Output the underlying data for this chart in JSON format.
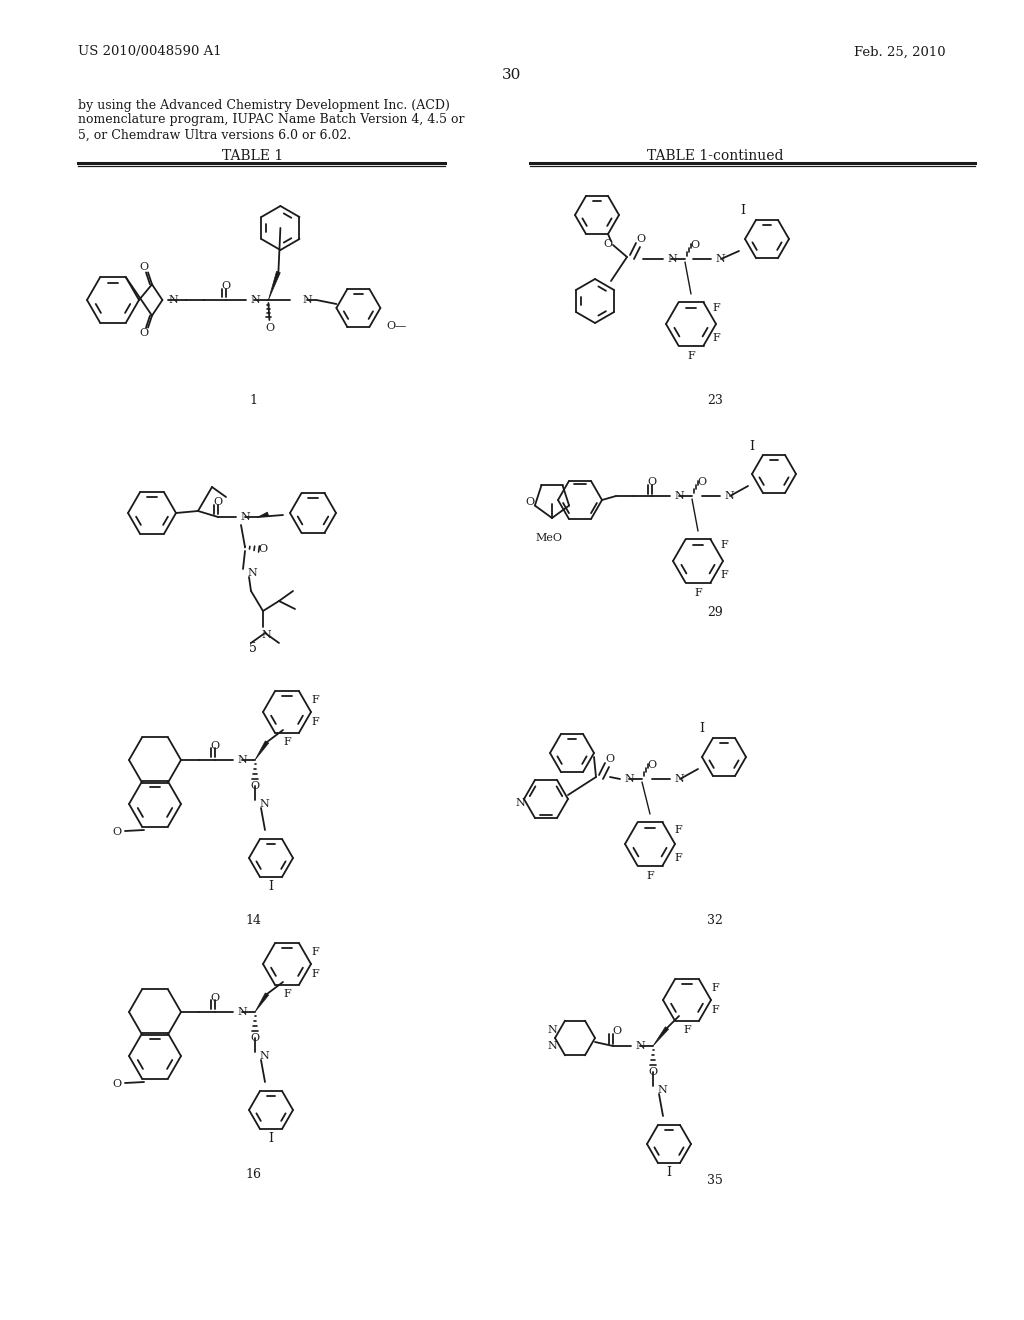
{
  "background_color": "#ffffff",
  "page_number": "30",
  "patent_number": "US 2010/0048590 A1",
  "patent_date": "Feb. 25, 2010",
  "intro_text_line1": "by using the Advanced Chemistry Development Inc. (ACD)",
  "intro_text_line2": "nomenclature program, IUPAC Name Batch Version 4, 4.5 or",
  "intro_text_line3": "5, or Chemdraw Ultra versions 6.0 or 6.02.",
  "table1_title": "TABLE 1",
  "table1_continued_title": "TABLE 1-continued",
  "compound_numbers": [
    "1",
    "5",
    "14",
    "16",
    "23",
    "29",
    "32",
    "35"
  ],
  "text_color": "#1a1a1a",
  "line_color": "#1a1a1a"
}
